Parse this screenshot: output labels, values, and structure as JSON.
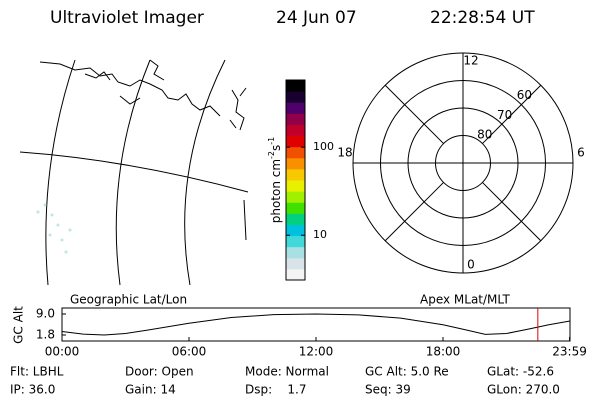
{
  "header": {
    "instrument": "Ultraviolet Imager",
    "date": "24 Jun 07",
    "time": "22:28:54 UT"
  },
  "colorbar": {
    "label_parts": [
      "photon cm",
      "-2",
      "s",
      "-1"
    ],
    "log": true,
    "lim": [
      3.1,
      580
    ],
    "ticks": [
      10,
      100
    ],
    "colors": [
      "#f4f4f4",
      "#d8e4e8",
      "#a8e0e4",
      "#40d8d8",
      "#00c0e0",
      "#00d080",
      "#40e000",
      "#a0f000",
      "#e8f000",
      "#f8c800",
      "#f89000",
      "#f05000",
      "#e00000",
      "#c0002a",
      "#90004a",
      "#50006a",
      "#180030",
      "#000000"
    ]
  },
  "polar": {
    "lat_limit": 50,
    "lat_ticks": [
      80,
      70,
      60
    ],
    "mlt_ticks": [
      12,
      6,
      0,
      18
    ]
  },
  "altitude": {
    "title_left": "Geographic Lat/Lon",
    "title_right": "Apex MLat/MLT",
    "ylabel": "GC Alt",
    "ylim": [
      1.8,
      9.0
    ],
    "yticks": [
      {
        "value": 9.0,
        "label": "9.0"
      },
      {
        "value": 1.8,
        "label": "1.8"
      }
    ],
    "xlim": [
      0,
      24
    ],
    "xticks": [
      {
        "value": 0,
        "label": "00:00"
      },
      {
        "value": 6,
        "label": "06:00"
      },
      {
        "value": 12,
        "label": "12:00"
      },
      {
        "value": 18,
        "label": "18:00"
      },
      {
        "value": 23.98,
        "label": "23:59"
      }
    ],
    "x": [
      0,
      1,
      2,
      3,
      4,
      6,
      8,
      10,
      12,
      14,
      16,
      18,
      19,
      20,
      21,
      22,
      23,
      24
    ],
    "values": [
      3.0,
      2.1,
      1.8,
      2.3,
      3.4,
      5.8,
      7.8,
      8.8,
      9.0,
      8.7,
      7.6,
      5.3,
      3.7,
      2.0,
      2.3,
      3.8,
      5.3,
      6.6
    ],
    "current_time": 22.48,
    "marker_color": "#e00000"
  },
  "footer": {
    "rows": [
      [
        "Flt: LBHL",
        "Door: Open",
        "Mode: Normal",
        "GC Alt: 5.0 Re",
        "GLat: -52.6"
      ],
      [
        "IP: 36.0",
        "Gain: 14",
        "Dsp:    1.7",
        "Seq: 39",
        "GLon: 270.0"
      ]
    ]
  }
}
